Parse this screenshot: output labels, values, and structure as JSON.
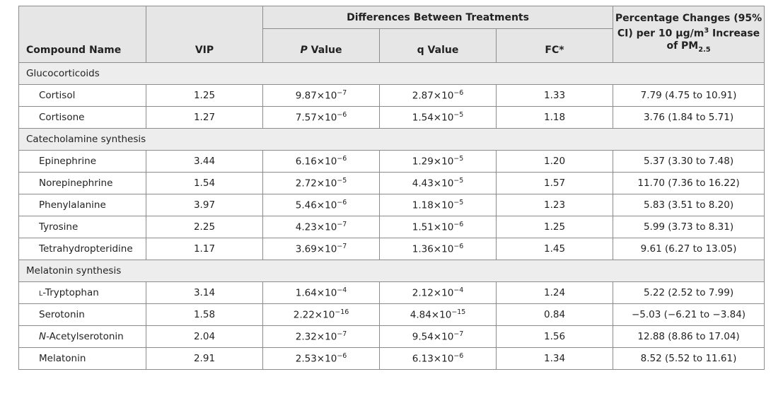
{
  "headers": {
    "compound": "Compound Name",
    "vip": "VIP",
    "differences": "Differences Between Treatments",
    "p_value_italic": "P",
    "p_value_rest": " Value",
    "q_value": "q Value",
    "fc": "FC*",
    "pct_line1": "Percentage Changes (95%",
    "pct_line2_a": "CI) per 10 µg/m",
    "pct_line2_sup": "3",
    "pct_line2_b": " Increase",
    "pct_line3_a": "of PM",
    "pct_line3_sub": "2.5"
  },
  "groups": [
    {
      "name": "Glucocorticoids",
      "rows": [
        {
          "name": "Cortisol",
          "vip": "1.25",
          "p": "9.87×10",
          "p_exp": "−7",
          "q": "2.87×10",
          "q_exp": "−6",
          "fc": "1.33",
          "pct": "7.79 (4.75 to 10.91)"
        },
        {
          "name": "Cortisone",
          "vip": "1.27",
          "p": "7.57×10",
          "p_exp": "−6",
          "q": "1.54×10",
          "q_exp": "−5",
          "fc": "1.18",
          "pct": "3.76 (1.84 to 5.71)"
        }
      ]
    },
    {
      "name": "Catecholamine synthesis",
      "rows": [
        {
          "name": "Epinephrine",
          "vip": "3.44",
          "p": "6.16×10",
          "p_exp": "−6",
          "q": "1.29×10",
          "q_exp": "−5",
          "fc": "1.20",
          "pct": "5.37 (3.30 to 7.48)"
        },
        {
          "name": "Norepinephrine",
          "vip": "1.54",
          "p": "2.72×10",
          "p_exp": "−5",
          "q": "4.43×10",
          "q_exp": "−5",
          "fc": "1.57",
          "pct": "11.70 (7.36 to 16.22)"
        },
        {
          "name": "Phenylalanine",
          "vip": "3.97",
          "p": "5.46×10",
          "p_exp": "−6",
          "q": "1.18×10",
          "q_exp": "−5",
          "fc": "1.23",
          "pct": "5.83 (3.51 to 8.20)"
        },
        {
          "name": "Tyrosine",
          "vip": "2.25",
          "p": "4.23×10",
          "p_exp": "−7",
          "q": "1.51×10",
          "q_exp": "−6",
          "fc": "1.25",
          "pct": "5.99 (3.73 to 8.31)"
        },
        {
          "name": "Tetrahydropteridine",
          "vip": "1.17",
          "p": "3.69×10",
          "p_exp": "−7",
          "q": "1.36×10",
          "q_exp": "−6",
          "fc": "1.45",
          "pct": "9.61 (6.27 to 13.05)"
        }
      ]
    },
    {
      "name": "Melatonin synthesis",
      "rows": [
        {
          "name_prefix_smallcaps": "L",
          "name": "-Tryptophan",
          "vip": "3.14",
          "p": "1.64×10",
          "p_exp": "−4",
          "q": "2.12×10",
          "q_exp": "−4",
          "fc": "1.24",
          "pct": "5.22 (2.52 to 7.99)"
        },
        {
          "name": "Serotonin",
          "vip": "1.58",
          "p": "2.22×10",
          "p_exp": "−16",
          "q": "4.84×10",
          "q_exp": "−15",
          "fc": "0.84",
          "pct": "−5.03 (−6.21 to −3.84)"
        },
        {
          "name_prefix_italic": "N",
          "name": "-Acetylserotonin",
          "vip": "2.04",
          "p": "2.32×10",
          "p_exp": "−7",
          "q": "9.54×10",
          "q_exp": "−7",
          "fc": "1.56",
          "pct": "12.88 (8.86 to 17.04)"
        },
        {
          "name": "Melatonin",
          "vip": "2.91",
          "p": "2.53×10",
          "p_exp": "−6",
          "q": "6.13×10",
          "q_exp": "−6",
          "fc": "1.34",
          "pct": "8.52 (5.52 to 11.61)"
        }
      ]
    }
  ]
}
